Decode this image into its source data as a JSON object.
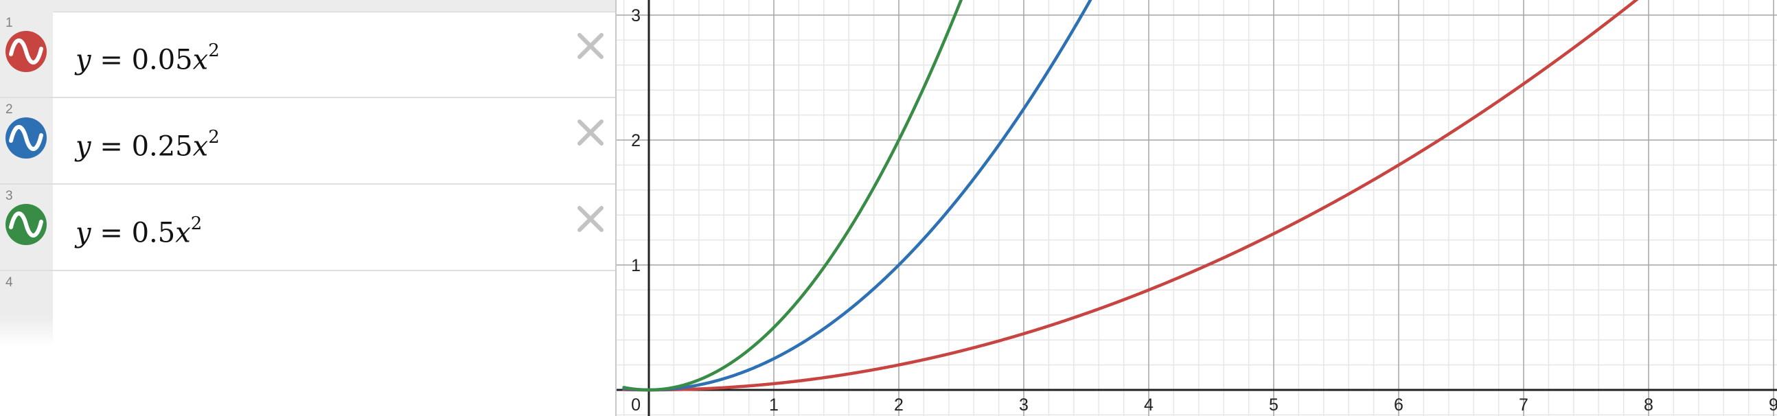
{
  "expressions": [
    {
      "index": "1",
      "color": "#c74440",
      "lhs": "y",
      "coef": "0.05",
      "var": "x",
      "exp": "2"
    },
    {
      "index": "2",
      "color": "#2d70b3",
      "lhs": "y",
      "coef": "0.25",
      "var": "x",
      "exp": "2"
    },
    {
      "index": "3",
      "color": "#388c46",
      "lhs": "y",
      "coef": "0.5",
      "var": "x",
      "exp": "2"
    }
  ],
  "empty_row": {
    "index": "4"
  },
  "icons": {
    "curve": "curve-icon",
    "delete": "close-icon"
  },
  "chart_data": {
    "type": "line",
    "xlim": [
      0,
      9
    ],
    "ylim": [
      0,
      3
    ],
    "x_ticks": [
      "0",
      "1",
      "2",
      "3",
      "4",
      "5",
      "6",
      "7",
      "8",
      "9"
    ],
    "y_ticks": [
      "1",
      "2",
      "3"
    ],
    "grid": true,
    "series": [
      {
        "coef": 0.05,
        "color": "#c74440"
      },
      {
        "coef": 0.25,
        "color": "#2d70b3"
      },
      {
        "coef": 0.5,
        "color": "#388c46"
      }
    ]
  }
}
